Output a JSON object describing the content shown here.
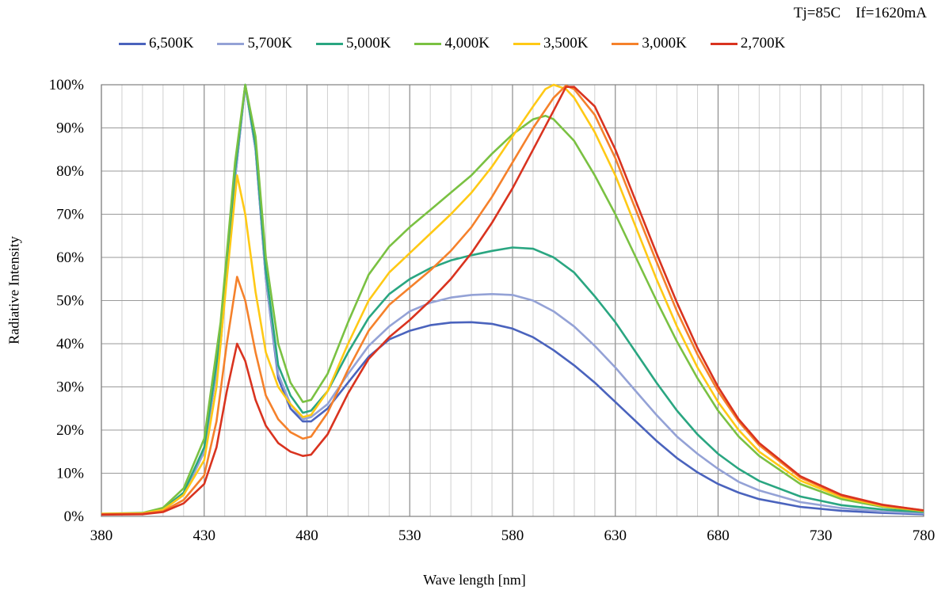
{
  "chart_data": {
    "type": "line",
    "conditions": "Tj=85C    If=1620mA",
    "xlabel": "Wave length [nm]",
    "ylabel": "Radiative Intensity",
    "xlim": [
      380,
      780
    ],
    "ylim": [
      0,
      100
    ],
    "x_ticks": [
      "380",
      "430",
      "480",
      "530",
      "580",
      "630",
      "680",
      "730",
      "780"
    ],
    "y_ticks": [
      "0%",
      "10%",
      "20%",
      "30%",
      "40%",
      "50%",
      "60%",
      "70%",
      "80%",
      "90%",
      "100%"
    ],
    "grid": true,
    "legend_position": "top",
    "series": [
      {
        "name": "6,500K",
        "color": "#4a63bd",
        "points": [
          [
            380,
            0.5
          ],
          [
            400,
            0.6
          ],
          [
            410,
            1.5
          ],
          [
            420,
            5
          ],
          [
            430,
            15
          ],
          [
            438,
            40
          ],
          [
            445,
            78
          ],
          [
            450,
            100
          ],
          [
            455,
            85
          ],
          [
            460,
            55
          ],
          [
            466,
            32
          ],
          [
            472,
            25
          ],
          [
            478,
            22
          ],
          [
            482,
            22
          ],
          [
            490,
            25
          ],
          [
            500,
            31
          ],
          [
            510,
            37
          ],
          [
            520,
            41
          ],
          [
            530,
            43
          ],
          [
            540,
            44.3
          ],
          [
            550,
            44.9
          ],
          [
            560,
            45
          ],
          [
            570,
            44.6
          ],
          [
            580,
            43.5
          ],
          [
            590,
            41.5
          ],
          [
            600,
            38.5
          ],
          [
            610,
            35
          ],
          [
            620,
            31
          ],
          [
            630,
            26.5
          ],
          [
            640,
            22
          ],
          [
            650,
            17.5
          ],
          [
            660,
            13.5
          ],
          [
            670,
            10.2
          ],
          [
            680,
            7.5
          ],
          [
            690,
            5.5
          ],
          [
            700,
            4
          ],
          [
            720,
            2.2
          ],
          [
            740,
            1.3
          ],
          [
            760,
            0.8
          ],
          [
            780,
            0.5
          ]
        ]
      },
      {
        "name": "5,700K",
        "color": "#94a2d6",
        "points": [
          [
            380,
            0.5
          ],
          [
            400,
            0.6
          ],
          [
            410,
            1.5
          ],
          [
            420,
            5
          ],
          [
            430,
            15
          ],
          [
            438,
            40
          ],
          [
            445,
            78
          ],
          [
            450,
            100
          ],
          [
            455,
            85
          ],
          [
            460,
            55
          ],
          [
            466,
            33
          ],
          [
            472,
            26
          ],
          [
            478,
            22.5
          ],
          [
            482,
            23
          ],
          [
            490,
            26
          ],
          [
            500,
            33
          ],
          [
            510,
            39.5
          ],
          [
            520,
            44
          ],
          [
            530,
            47.5
          ],
          [
            540,
            49.5
          ],
          [
            550,
            50.7
          ],
          [
            560,
            51.3
          ],
          [
            570,
            51.5
          ],
          [
            580,
            51.3
          ],
          [
            590,
            50
          ],
          [
            600,
            47.5
          ],
          [
            610,
            44
          ],
          [
            620,
            39.5
          ],
          [
            630,
            34.5
          ],
          [
            640,
            29
          ],
          [
            650,
            23.5
          ],
          [
            660,
            18.5
          ],
          [
            670,
            14.5
          ],
          [
            680,
            11
          ],
          [
            690,
            8
          ],
          [
            700,
            6
          ],
          [
            720,
            3.3
          ],
          [
            740,
            1.9
          ],
          [
            760,
            1.1
          ],
          [
            780,
            0.7
          ]
        ]
      },
      {
        "name": "5,000K",
        "color": "#2aa681",
        "points": [
          [
            380,
            0.5
          ],
          [
            400,
            0.6
          ],
          [
            410,
            1.7
          ],
          [
            420,
            5.5
          ],
          [
            430,
            16
          ],
          [
            438,
            42
          ],
          [
            445,
            80
          ],
          [
            450,
            100
          ],
          [
            455,
            86
          ],
          [
            460,
            57
          ],
          [
            466,
            35
          ],
          [
            472,
            28
          ],
          [
            478,
            24
          ],
          [
            482,
            24.5
          ],
          [
            490,
            29
          ],
          [
            500,
            38
          ],
          [
            510,
            46
          ],
          [
            520,
            51.5
          ],
          [
            530,
            55
          ],
          [
            540,
            57.5
          ],
          [
            550,
            59.3
          ],
          [
            560,
            60.5
          ],
          [
            570,
            61.5
          ],
          [
            580,
            62.3
          ],
          [
            590,
            62
          ],
          [
            600,
            60
          ],
          [
            610,
            56.5
          ],
          [
            620,
            51
          ],
          [
            630,
            45
          ],
          [
            640,
            38
          ],
          [
            650,
            31
          ],
          [
            660,
            24.5
          ],
          [
            670,
            19
          ],
          [
            680,
            14.5
          ],
          [
            690,
            11
          ],
          [
            700,
            8.2
          ],
          [
            720,
            4.6
          ],
          [
            740,
            2.6
          ],
          [
            760,
            1.6
          ],
          [
            780,
            1
          ]
        ]
      },
      {
        "name": "4,000K",
        "color": "#7ac142",
        "points": [
          [
            380,
            0.6
          ],
          [
            400,
            0.8
          ],
          [
            410,
            2
          ],
          [
            420,
            6.5
          ],
          [
            430,
            18
          ],
          [
            438,
            45
          ],
          [
            445,
            82
          ],
          [
            450,
            100
          ],
          [
            455,
            88
          ],
          [
            460,
            60
          ],
          [
            466,
            40
          ],
          [
            472,
            31
          ],
          [
            478,
            26.5
          ],
          [
            482,
            27
          ],
          [
            490,
            33
          ],
          [
            500,
            45
          ],
          [
            510,
            56
          ],
          [
            520,
            62.5
          ],
          [
            530,
            67
          ],
          [
            540,
            71
          ],
          [
            550,
            75
          ],
          [
            560,
            79
          ],
          [
            570,
            84
          ],
          [
            580,
            88.5
          ],
          [
            590,
            92
          ],
          [
            596,
            92.8
          ],
          [
            600,
            92
          ],
          [
            610,
            87
          ],
          [
            620,
            79
          ],
          [
            630,
            70
          ],
          [
            640,
            60
          ],
          [
            650,
            50
          ],
          [
            660,
            40.5
          ],
          [
            670,
            32
          ],
          [
            680,
            24.5
          ],
          [
            690,
            18.5
          ],
          [
            700,
            14
          ],
          [
            720,
            7.5
          ],
          [
            740,
            4
          ],
          [
            760,
            2.2
          ],
          [
            780,
            1.2
          ]
        ]
      },
      {
        "name": "3,500K",
        "color": "#ffc915",
        "points": [
          [
            380,
            0.6
          ],
          [
            400,
            0.7
          ],
          [
            410,
            1.5
          ],
          [
            420,
            5
          ],
          [
            430,
            13
          ],
          [
            436,
            30
          ],
          [
            441,
            55
          ],
          [
            446,
            79
          ],
          [
            450,
            70
          ],
          [
            455,
            52
          ],
          [
            460,
            38
          ],
          [
            466,
            30
          ],
          [
            472,
            26
          ],
          [
            478,
            23
          ],
          [
            482,
            23.5
          ],
          [
            490,
            29
          ],
          [
            500,
            40
          ],
          [
            510,
            50
          ],
          [
            520,
            56.5
          ],
          [
            530,
            61
          ],
          [
            540,
            65.5
          ],
          [
            550,
            70
          ],
          [
            560,
            75
          ],
          [
            570,
            81
          ],
          [
            580,
            88
          ],
          [
            590,
            95
          ],
          [
            596,
            99
          ],
          [
            600,
            100
          ],
          [
            606,
            99
          ],
          [
            610,
            97
          ],
          [
            620,
            89
          ],
          [
            630,
            79
          ],
          [
            640,
            67
          ],
          [
            650,
            55
          ],
          [
            660,
            44
          ],
          [
            670,
            34.5
          ],
          [
            680,
            26.5
          ],
          [
            690,
            20
          ],
          [
            700,
            15
          ],
          [
            720,
            8.3
          ],
          [
            740,
            4.5
          ],
          [
            760,
            2.4
          ],
          [
            780,
            1.3
          ]
        ]
      },
      {
        "name": "3,000K",
        "color": "#f5812b",
        "points": [
          [
            380,
            0.5
          ],
          [
            400,
            0.6
          ],
          [
            410,
            1.2
          ],
          [
            420,
            3.8
          ],
          [
            430,
            9.5
          ],
          [
            436,
            22
          ],
          [
            441,
            40
          ],
          [
            446,
            55.5
          ],
          [
            450,
            50
          ],
          [
            455,
            38
          ],
          [
            460,
            28
          ],
          [
            466,
            22.5
          ],
          [
            472,
            19.5
          ],
          [
            478,
            18
          ],
          [
            482,
            18.5
          ],
          [
            490,
            24
          ],
          [
            500,
            34
          ],
          [
            510,
            43
          ],
          [
            520,
            49
          ],
          [
            530,
            53
          ],
          [
            540,
            57
          ],
          [
            550,
            61.5
          ],
          [
            560,
            67
          ],
          [
            570,
            74
          ],
          [
            580,
            82
          ],
          [
            590,
            90
          ],
          [
            600,
            97
          ],
          [
            606,
            99.8
          ],
          [
            610,
            99
          ],
          [
            620,
            93
          ],
          [
            630,
            83
          ],
          [
            640,
            71
          ],
          [
            650,
            59
          ],
          [
            660,
            47.5
          ],
          [
            670,
            37.5
          ],
          [
            680,
            29
          ],
          [
            690,
            22
          ],
          [
            700,
            16.5
          ],
          [
            720,
            9
          ],
          [
            740,
            4.8
          ],
          [
            760,
            2.6
          ],
          [
            780,
            1.4
          ]
        ]
      },
      {
        "name": "2,700K",
        "color": "#d9331f",
        "points": [
          [
            380,
            0.4
          ],
          [
            400,
            0.5
          ],
          [
            410,
            1
          ],
          [
            420,
            3
          ],
          [
            430,
            7.5
          ],
          [
            436,
            16
          ],
          [
            441,
            29
          ],
          [
            446,
            40
          ],
          [
            450,
            36
          ],
          [
            455,
            27
          ],
          [
            460,
            21
          ],
          [
            466,
            17
          ],
          [
            472,
            15
          ],
          [
            478,
            14
          ],
          [
            482,
            14.3
          ],
          [
            490,
            19
          ],
          [
            500,
            28.5
          ],
          [
            510,
            36.5
          ],
          [
            520,
            41.5
          ],
          [
            530,
            45.5
          ],
          [
            540,
            50
          ],
          [
            550,
            55
          ],
          [
            560,
            61
          ],
          [
            570,
            68
          ],
          [
            580,
            76
          ],
          [
            590,
            85
          ],
          [
            600,
            94
          ],
          [
            606,
            99.5
          ],
          [
            610,
            99.5
          ],
          [
            620,
            95
          ],
          [
            630,
            85
          ],
          [
            640,
            73
          ],
          [
            650,
            61
          ],
          [
            660,
            49.5
          ],
          [
            670,
            39
          ],
          [
            680,
            30
          ],
          [
            690,
            22.5
          ],
          [
            700,
            17
          ],
          [
            720,
            9.3
          ],
          [
            740,
            5
          ],
          [
            760,
            2.7
          ],
          [
            780,
            1.4
          ]
        ]
      }
    ]
  }
}
